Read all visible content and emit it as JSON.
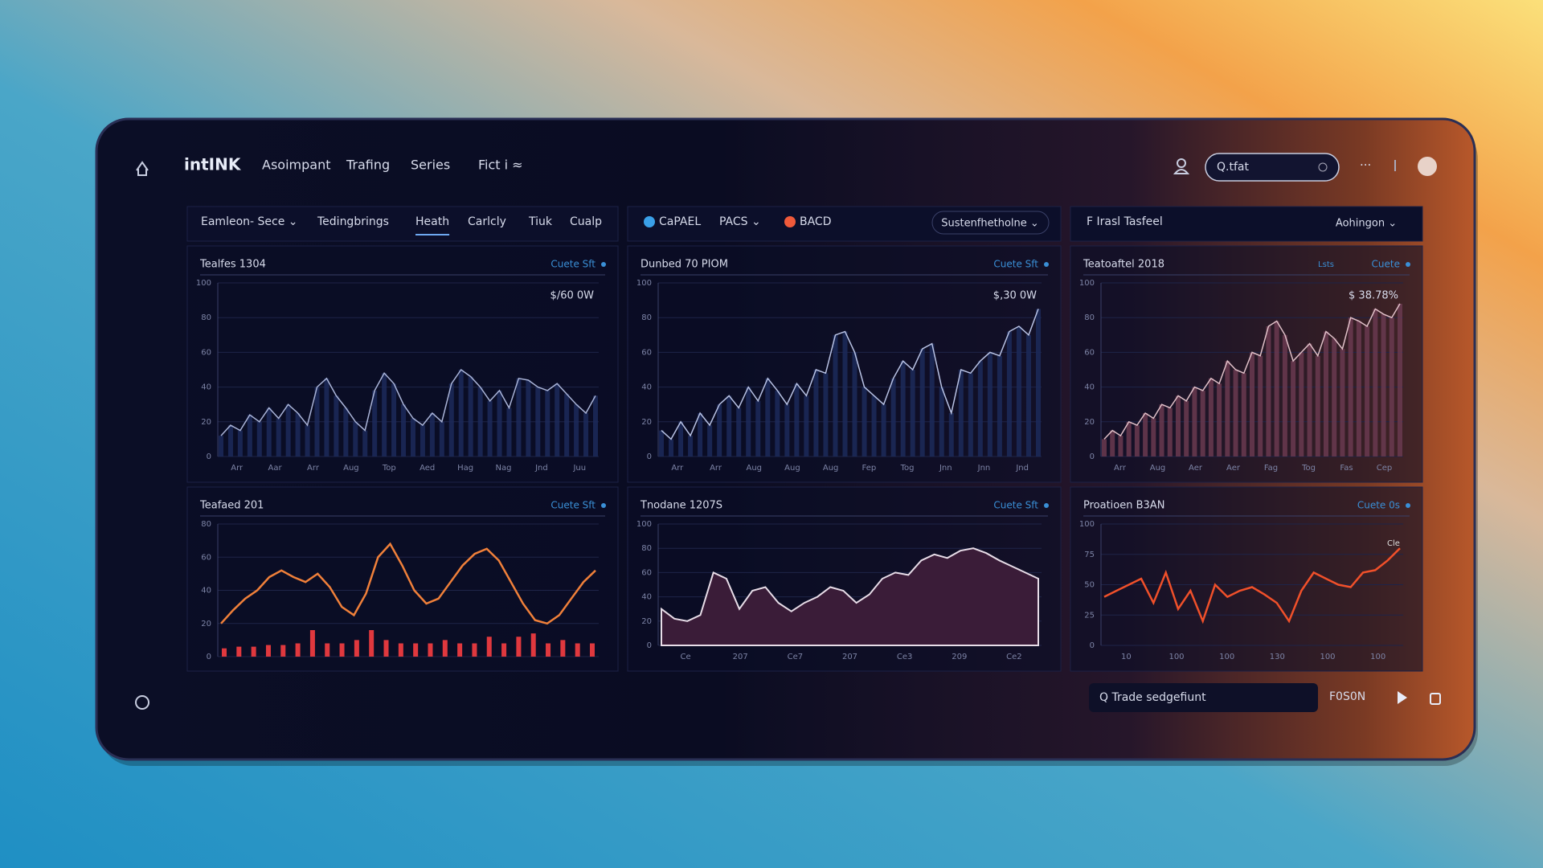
{
  "nav": {
    "logo": "intINK",
    "items": [
      "Asoimpant",
      "Trafing",
      "Series",
      "Fict i ≈"
    ],
    "search": "Q.tfat"
  },
  "toolbars": [
    {
      "items": [
        "Eamleon- Sece ⌄",
        "Tedingbrings",
        "Heath",
        "Carlcly",
        "Tiuk",
        "Cualp"
      ],
      "active": 2
    },
    {
      "items": [
        "CaPAEL",
        "PACS ⌄",
        "BACD"
      ],
      "dropdown": "Sustenfhetholne ⌄"
    },
    {
      "items": [
        "F Irasl Tasfeel"
      ],
      "dropdown": "Aohingon ⌄"
    }
  ],
  "panels": [
    {
      "title": "Tealfes 1304",
      "link": "Cuete Sft",
      "readout": "$/60 0W",
      "type": "area",
      "color": "#aab4d8",
      "ylim": [
        0,
        100
      ],
      "yticks": [
        0,
        20,
        40,
        60,
        80,
        100
      ],
      "xlabels": [
        "Arr",
        "Aar",
        "Arr",
        "Aug",
        "Top",
        "Aed",
        "Hag",
        "Nag",
        "Jnd",
        "Juu"
      ],
      "values": [
        12,
        18,
        15,
        24,
        20,
        28,
        22,
        30,
        25,
        18,
        40,
        45,
        35,
        28,
        20,
        15,
        38,
        48,
        42,
        30,
        22,
        18,
        25,
        20,
        42,
        50,
        46,
        40,
        32,
        38,
        28,
        45,
        44,
        40,
        38,
        42,
        36,
        30,
        25,
        35
      ]
    },
    {
      "title": "Dunbed 70 PIOM",
      "link": "Cuete Sft",
      "readout": "$,30 0W",
      "type": "area",
      "color": "#b8c2e4",
      "ylim": [
        0,
        100
      ],
      "yticks": [
        0,
        20,
        40,
        60,
        80,
        100
      ],
      "xlabels": [
        "Arr",
        "Arr",
        "Aug",
        "Aug",
        "Aug",
        "Fep",
        "Tog",
        "Jnn",
        "Jnn",
        "Jnd"
      ],
      "values": [
        15,
        10,
        20,
        12,
        25,
        18,
        30,
        35,
        28,
        40,
        32,
        45,
        38,
        30,
        42,
        35,
        50,
        48,
        70,
        72,
        60,
        40,
        35,
        30,
        45,
        55,
        50,
        62,
        65,
        40,
        25,
        50,
        48,
        55,
        60,
        58,
        72,
        75,
        70,
        85
      ]
    },
    {
      "title": "Teatoaftel 2018",
      "link": "Cuete",
      "badge": "Lsts",
      "readout": "$ 38.78%",
      "type": "area",
      "color": "#e0c0c8",
      "ylim": [
        0,
        100
      ],
      "yticks": [
        0,
        20,
        40,
        60,
        80,
        100
      ],
      "xlabels": [
        "Arr",
        "Aug",
        "Aer",
        "Aer",
        "Fag",
        "Tog",
        "Fas",
        "Cep"
      ],
      "values": [
        10,
        15,
        12,
        20,
        18,
        25,
        22,
        30,
        28,
        35,
        32,
        40,
        38,
        45,
        42,
        55,
        50,
        48,
        60,
        58,
        75,
        78,
        70,
        55,
        60,
        65,
        58,
        72,
        68,
        62,
        80,
        78,
        75,
        85,
        82,
        80,
        88
      ]
    },
    {
      "title": "Teafaed 201",
      "link": "Cuete Sft",
      "type": "line",
      "color": "#f0803a",
      "ylim": [
        0,
        80
      ],
      "yticks": [
        0,
        20,
        40,
        60,
        80
      ],
      "xlabels": [],
      "values": [
        20,
        28,
        35,
        40,
        48,
        52,
        48,
        45,
        50,
        42,
        30,
        25,
        38,
        60,
        68,
        55,
        40,
        32,
        35,
        45,
        55,
        62,
        65,
        58,
        45,
        32,
        22,
        20,
        25,
        35,
        45,
        52
      ],
      "bars": {
        "color": "#e0383e",
        "values": [
          5,
          6,
          6,
          7,
          7,
          8,
          16,
          8,
          8,
          10,
          16,
          10,
          8,
          8,
          8,
          10,
          8,
          8,
          12,
          8,
          12,
          14,
          8,
          10,
          8,
          8
        ]
      }
    },
    {
      "title": "Tnodane 1207S",
      "link": "Cuete Sft",
      "type": "fill",
      "color": "#e8dde8",
      "ylim": [
        0,
        100
      ],
      "yticks": [
        0,
        20,
        40,
        60,
        80,
        100
      ],
      "xlabels": [
        "Ce",
        "207",
        "Ce7",
        "207",
        "Ce3",
        "209",
        "Ce2"
      ],
      "values": [
        30,
        22,
        20,
        25,
        60,
        55,
        30,
        45,
        48,
        35,
        28,
        35,
        40,
        48,
        45,
        35,
        42,
        55,
        60,
        58,
        70,
        75,
        72,
        78,
        80,
        76,
        70,
        65,
        60,
        55
      ]
    },
    {
      "title": "Proatioen B3AN",
      "link": "Cuete 0s",
      "badge": "Cle",
      "type": "line",
      "color": "#f0502a",
      "ylim": [
        0,
        100
      ],
      "yticks": [
        0,
        25,
        50,
        75,
        100
      ],
      "xlabels": [
        "10",
        "100",
        "100",
        "130",
        "100",
        "100"
      ],
      "values": [
        40,
        45,
        50,
        55,
        35,
        60,
        30,
        45,
        20,
        50,
        40,
        45,
        48,
        42,
        35,
        20,
        45,
        60,
        55,
        50,
        48,
        60,
        62,
        70,
        80
      ]
    }
  ],
  "footer": {
    "search": "Q Trade sedgefiunt",
    "button": "F0S0N"
  }
}
